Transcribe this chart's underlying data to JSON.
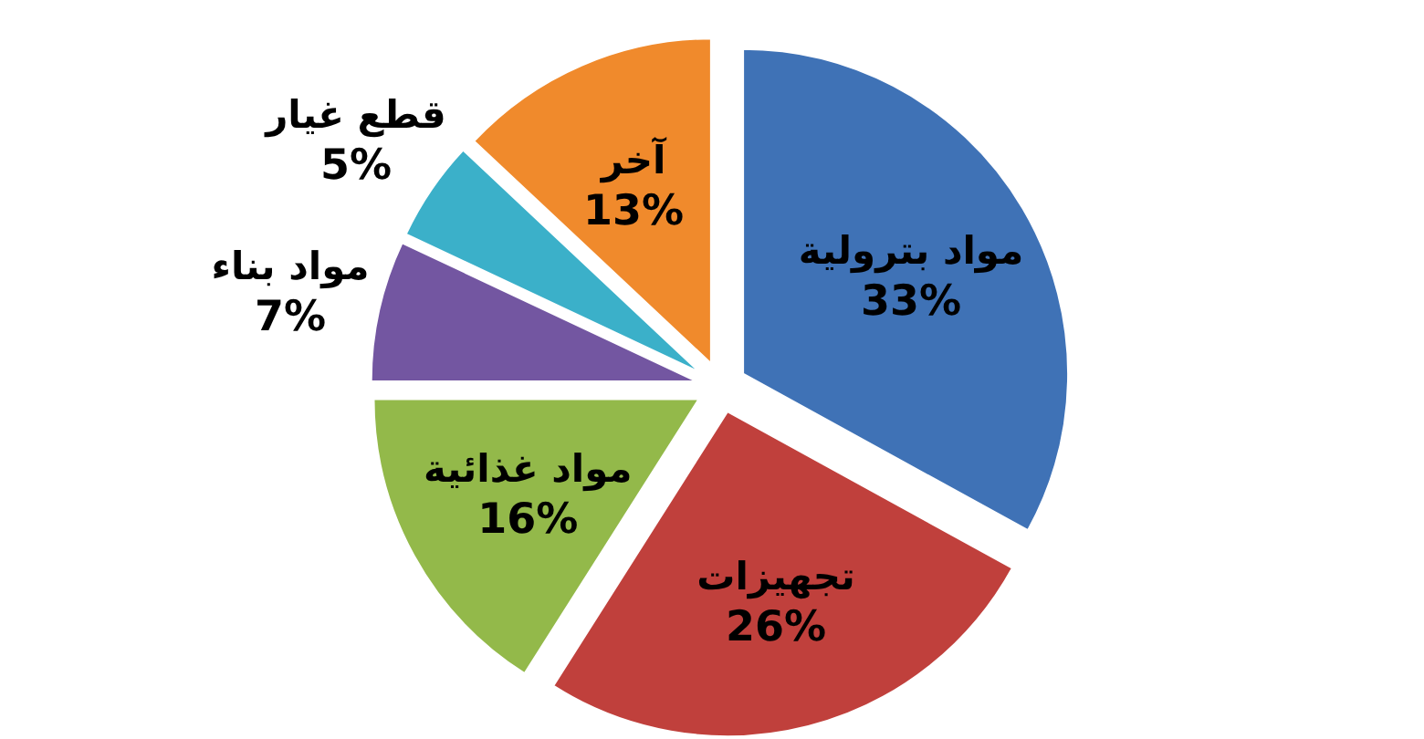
{
  "chart_data": {
    "type": "pie",
    "categories": [
      "مواد بترولية",
      "تجهيزات",
      "مواد غذائية",
      "مواد بناء",
      "قطع غيار",
      "آخر"
    ],
    "values": [
      33,
      26,
      16,
      7,
      5,
      13
    ],
    "value_labels": [
      "33%",
      "26%",
      "16%",
      "7%",
      "5%",
      "13%"
    ],
    "colors": [
      "#3f72b6",
      "#c0403c",
      "#93b94a",
      "#7356a1",
      "#3bb0c9",
      "#f08a2c"
    ]
  }
}
